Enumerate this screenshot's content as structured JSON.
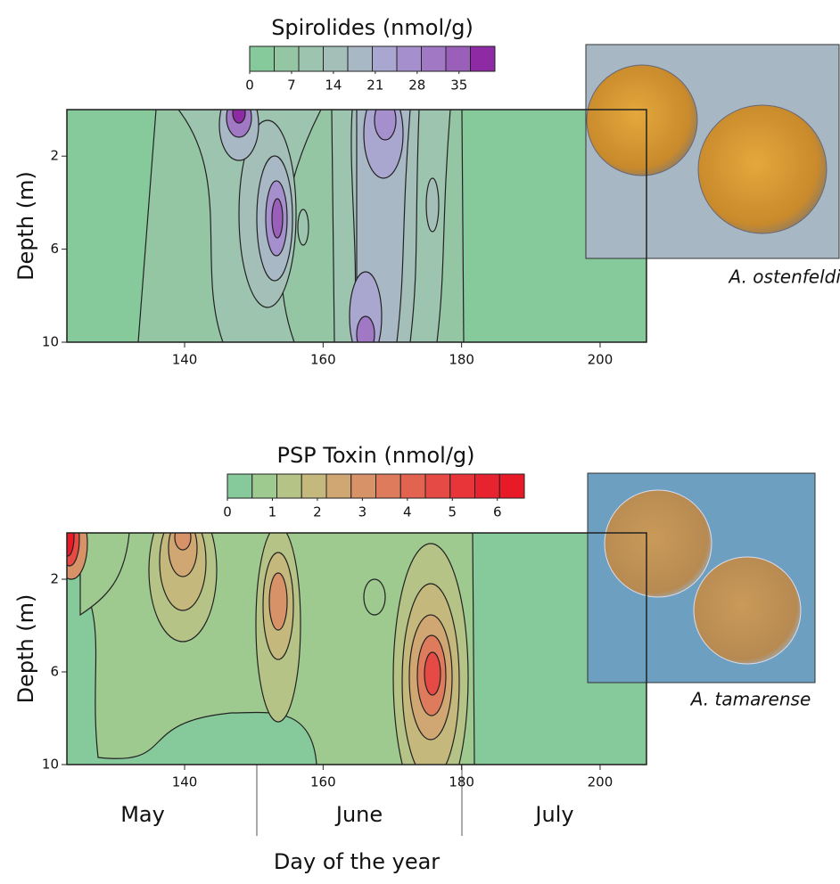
{
  "chart_data": [
    {
      "type": "contour",
      "ylabel": "Depth (m)",
      "xlim": [
        123,
        206.7
      ],
      "xticks": [
        140,
        160,
        180,
        200
      ],
      "ylim": [
        10,
        0
      ],
      "yticks": [
        2,
        6,
        10
      ],
      "background": "#86c99a",
      "colorbar": {
        "label": "Spirolides (nmol/g)",
        "lim": [
          0,
          41
        ],
        "ticks": [
          0,
          7,
          14,
          21,
          28,
          35
        ],
        "colors": [
          "#86c99a",
          "#95c6a3",
          "#9cc4ae",
          "#a3bfb8",
          "#a9b8c5",
          "#a9a6cf",
          "#a58fcc",
          "#a078c4",
          "#9a5fb9",
          "#8e2aa3"
        ]
      },
      "caption": "A. ostenfeldii"
    },
    {
      "type": "contour",
      "ylabel": "Depth (m)",
      "xlabel": "Day of the year",
      "xlim": [
        123,
        206.7
      ],
      "xticks": [
        140,
        160,
        180,
        200
      ],
      "ylim": [
        10,
        0
      ],
      "yticks": [
        2,
        6,
        10
      ],
      "background": "#86c99a",
      "months": [
        "May",
        "June",
        "July"
      ],
      "colorbar": {
        "label": "PSP Toxin (nmol/g)",
        "lim": [
          0,
          6.6
        ],
        "ticks": [
          0,
          1,
          2,
          3,
          4,
          5,
          6
        ],
        "colors": [
          "#86c99a",
          "#9ec98f",
          "#b5c486",
          "#c5b87c",
          "#d0a772",
          "#d79268",
          "#dd7b5c",
          "#e26350",
          "#e54b44",
          "#e73539",
          "#e82330",
          "#e81a28"
        ]
      },
      "caption": "A. tamarense"
    }
  ]
}
